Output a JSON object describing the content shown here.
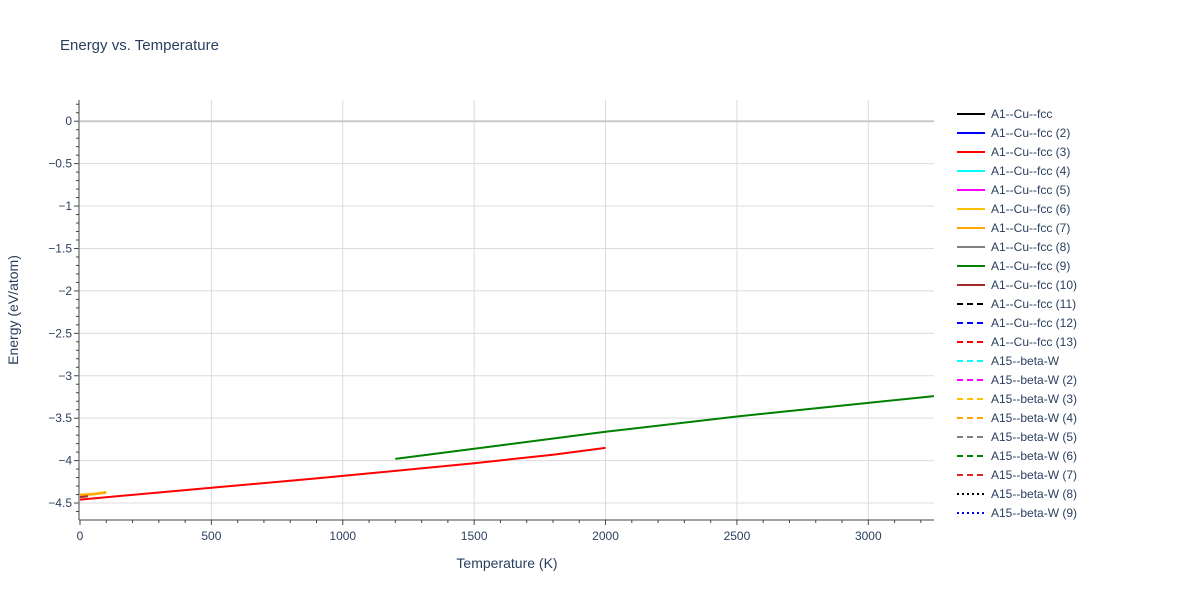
{
  "chart_data": {
    "type": "line",
    "title": "Energy vs. Temperature",
    "xlabel": "Temperature (K)",
    "ylabel": "Energy (eV/atom)",
    "xlim": [
      0,
      3250
    ],
    "ylim": [
      -4.7,
      0.25
    ],
    "xticks": [
      0,
      500,
      1000,
      1500,
      2000,
      2500,
      3000
    ],
    "yticks": [
      0,
      -0.5,
      -1,
      -1.5,
      -2,
      -2.5,
      -3,
      -3.5,
      -4,
      -4.5
    ],
    "xtick_labels": [
      "0",
      "500",
      "1000",
      "1500",
      "2000",
      "2500",
      "3000"
    ],
    "ytick_labels": [
      "0",
      "−0.5",
      "−1",
      "−1.5",
      "−2",
      "−2.5",
      "−3",
      "−3.5",
      "−4",
      "−4.5"
    ],
    "grid": true,
    "legend_position": "right",
    "series": [
      {
        "name": "A1--Cu--fcc",
        "color": "#000000",
        "dash": "solid",
        "x": [],
        "y": []
      },
      {
        "name": "A1--Cu--fcc (2)",
        "color": "#0000ff",
        "dash": "solid",
        "x": [],
        "y": []
      },
      {
        "name": "A1--Cu--fcc (3)",
        "color": "#ff0000",
        "dash": "solid",
        "x": [
          0,
          500,
          900,
          1000,
          1500,
          1800,
          2000
        ],
        "y": [
          -4.46,
          -4.32,
          -4.21,
          -4.18,
          -4.03,
          -3.93,
          -3.85
        ]
      },
      {
        "name": "A1--Cu--fcc (4)",
        "color": "#00ffff",
        "dash": "solid",
        "x": [],
        "y": []
      },
      {
        "name": "A1--Cu--fcc (5)",
        "color": "#ff00ff",
        "dash": "solid",
        "x": [],
        "y": []
      },
      {
        "name": "A1--Cu--fcc (6)",
        "color": "#ffc000",
        "dash": "solid",
        "x": [
          0,
          50,
          100
        ],
        "y": [
          -4.4,
          -4.39,
          -4.37
        ]
      },
      {
        "name": "A1--Cu--fcc (7)",
        "color": "#ffa500",
        "dash": "solid",
        "x": [
          0,
          50,
          100
        ],
        "y": [
          -4.41,
          -4.4,
          -4.38
        ]
      },
      {
        "name": "A1--Cu--fcc (8)",
        "color": "#808080",
        "dash": "solid",
        "x": [],
        "y": []
      },
      {
        "name": "A1--Cu--fcc (9)",
        "color": "#008000",
        "dash": "solid",
        "x": [
          1200,
          1500,
          2000,
          2500,
          3000,
          3250
        ],
        "y": [
          -3.98,
          -3.86,
          -3.66,
          -3.48,
          -3.32,
          -3.24
        ]
      },
      {
        "name": "A1--Cu--fcc (10)",
        "color": "#a52a2a",
        "dash": "solid",
        "x": [
          0,
          30
        ],
        "y": [
          -4.43,
          -4.42
        ]
      },
      {
        "name": "A1--Cu--fcc (11)",
        "color": "#000000",
        "dash": "dash",
        "x": [],
        "y": []
      },
      {
        "name": "A1--Cu--fcc (12)",
        "color": "#0000ff",
        "dash": "dash",
        "x": [],
        "y": []
      },
      {
        "name": "A1--Cu--fcc (13)",
        "color": "#ff0000",
        "dash": "dash",
        "x": [],
        "y": []
      },
      {
        "name": "A15--beta-W",
        "color": "#00ffff",
        "dash": "dash",
        "x": [],
        "y": []
      },
      {
        "name": "A15--beta-W (2)",
        "color": "#ff00ff",
        "dash": "dash",
        "x": [],
        "y": []
      },
      {
        "name": "A15--beta-W (3)",
        "color": "#ffc000",
        "dash": "dash",
        "x": [],
        "y": []
      },
      {
        "name": "A15--beta-W (4)",
        "color": "#ffa500",
        "dash": "dash",
        "x": [],
        "y": []
      },
      {
        "name": "A15--beta-W (5)",
        "color": "#808080",
        "dash": "dash",
        "x": [],
        "y": []
      },
      {
        "name": "A15--beta-W (6)",
        "color": "#008000",
        "dash": "dash",
        "x": [],
        "y": []
      },
      {
        "name": "A15--beta-W (7)",
        "color": "#d62728",
        "dash": "dash",
        "x": [],
        "y": []
      },
      {
        "name": "A15--beta-W (8)",
        "color": "#000000",
        "dash": "dot",
        "x": [],
        "y": []
      },
      {
        "name": "A15--beta-W (9)",
        "color": "#0000ff",
        "dash": "dot",
        "x": [],
        "y": []
      }
    ]
  }
}
